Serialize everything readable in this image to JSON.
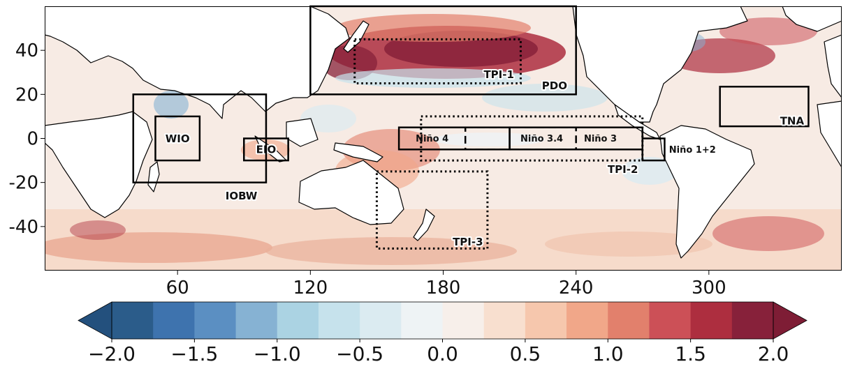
{
  "map": {
    "projection": "PlateCarree, central longitude 180",
    "lon_range": [
      0,
      360
    ],
    "lat_range": [
      -60,
      60
    ],
    "x_ticks": [
      {
        "value": 60,
        "label": "60"
      },
      {
        "value": 120,
        "label": "120"
      },
      {
        "value": 180,
        "label": "180"
      },
      {
        "value": 240,
        "label": "240"
      },
      {
        "value": 300,
        "label": "300"
      }
    ],
    "y_ticks": [
      {
        "value": 40,
        "label": "40"
      },
      {
        "value": 20,
        "label": "20"
      },
      {
        "value": 0,
        "label": "0"
      },
      {
        "value": -20,
        "label": "-20"
      },
      {
        "value": -40,
        "label": "-40"
      }
    ],
    "land_color": "#ffffff",
    "coastline_color": "#000000"
  },
  "regions": [
    {
      "id": "pdo",
      "label": "PDO",
      "lon": [
        120,
        240
      ],
      "lat": [
        20,
        60
      ],
      "style": "solid"
    },
    {
      "id": "tpi1",
      "label": "TPI-1",
      "lon": [
        140,
        215
      ],
      "lat": [
        25,
        45
      ],
      "style": "dotted"
    },
    {
      "id": "tpi2",
      "label": "TPI-2",
      "lon": [
        170,
        270
      ],
      "lat": [
        -10,
        10
      ],
      "style": "dotted"
    },
    {
      "id": "tpi3",
      "label": "TPI-3",
      "lon": [
        150,
        200
      ],
      "lat": [
        -50,
        -15
      ],
      "style": "dotted"
    },
    {
      "id": "nino4",
      "label": "Niño 4",
      "lon": [
        160,
        210
      ],
      "lat": [
        -5,
        5
      ],
      "style": "solid"
    },
    {
      "id": "nino34",
      "label": "Niño 3.4",
      "lon": [
        190,
        240
      ],
      "lat": [
        -5,
        5
      ],
      "style": "dashed"
    },
    {
      "id": "nino3",
      "label": "Niño 3",
      "lon": [
        210,
        270
      ],
      "lat": [
        -5,
        5
      ],
      "style": "solid"
    },
    {
      "id": "nino12",
      "label": "Niño 1+2",
      "lon": [
        270,
        280
      ],
      "lat": [
        -10,
        0
      ],
      "style": "solid"
    },
    {
      "id": "wio",
      "label": "WIO",
      "lon": [
        50,
        70
      ],
      "lat": [
        -10,
        10
      ],
      "style": "solid"
    },
    {
      "id": "eio",
      "label": "EIO",
      "lon": [
        90,
        110
      ],
      "lat": [
        -10,
        0
      ],
      "style": "solid"
    },
    {
      "id": "iobw",
      "label": "IOBW",
      "lon": [
        40,
        100
      ],
      "lat": [
        -20,
        20
      ],
      "style": "solid"
    },
    {
      "id": "tna",
      "label": "TNA",
      "lon": [
        305,
        345
      ],
      "lat": [
        5.5,
        23.5
      ],
      "style": "solid"
    }
  ],
  "colorbar": {
    "min": -2.0,
    "max": 2.0,
    "step": 0.25,
    "extend": "both",
    "tick_labels": [
      "−2.0",
      "−1.5",
      "−1.0",
      "−0.5",
      "0.0",
      "0.5",
      "1.0",
      "1.5",
      "2.0"
    ],
    "tick_values": [
      -2.0,
      -1.5,
      -1.0,
      -0.5,
      0.0,
      0.5,
      1.0,
      1.5,
      2.0
    ],
    "colors": [
      "#2b5c8a",
      "#3e73ae",
      "#5b8fc2",
      "#86b2d3",
      "#abd3e3",
      "#c6e2ec",
      "#dbebf1",
      "#eef3f5",
      "#f7efea",
      "#f8dfcf",
      "#f6c7ad",
      "#f1a789",
      "#e2806c",
      "#cc5057",
      "#ad2e3f",
      "#87213a"
    ],
    "under_color": "#23507d",
    "over_color": "#7e1d35"
  }
}
